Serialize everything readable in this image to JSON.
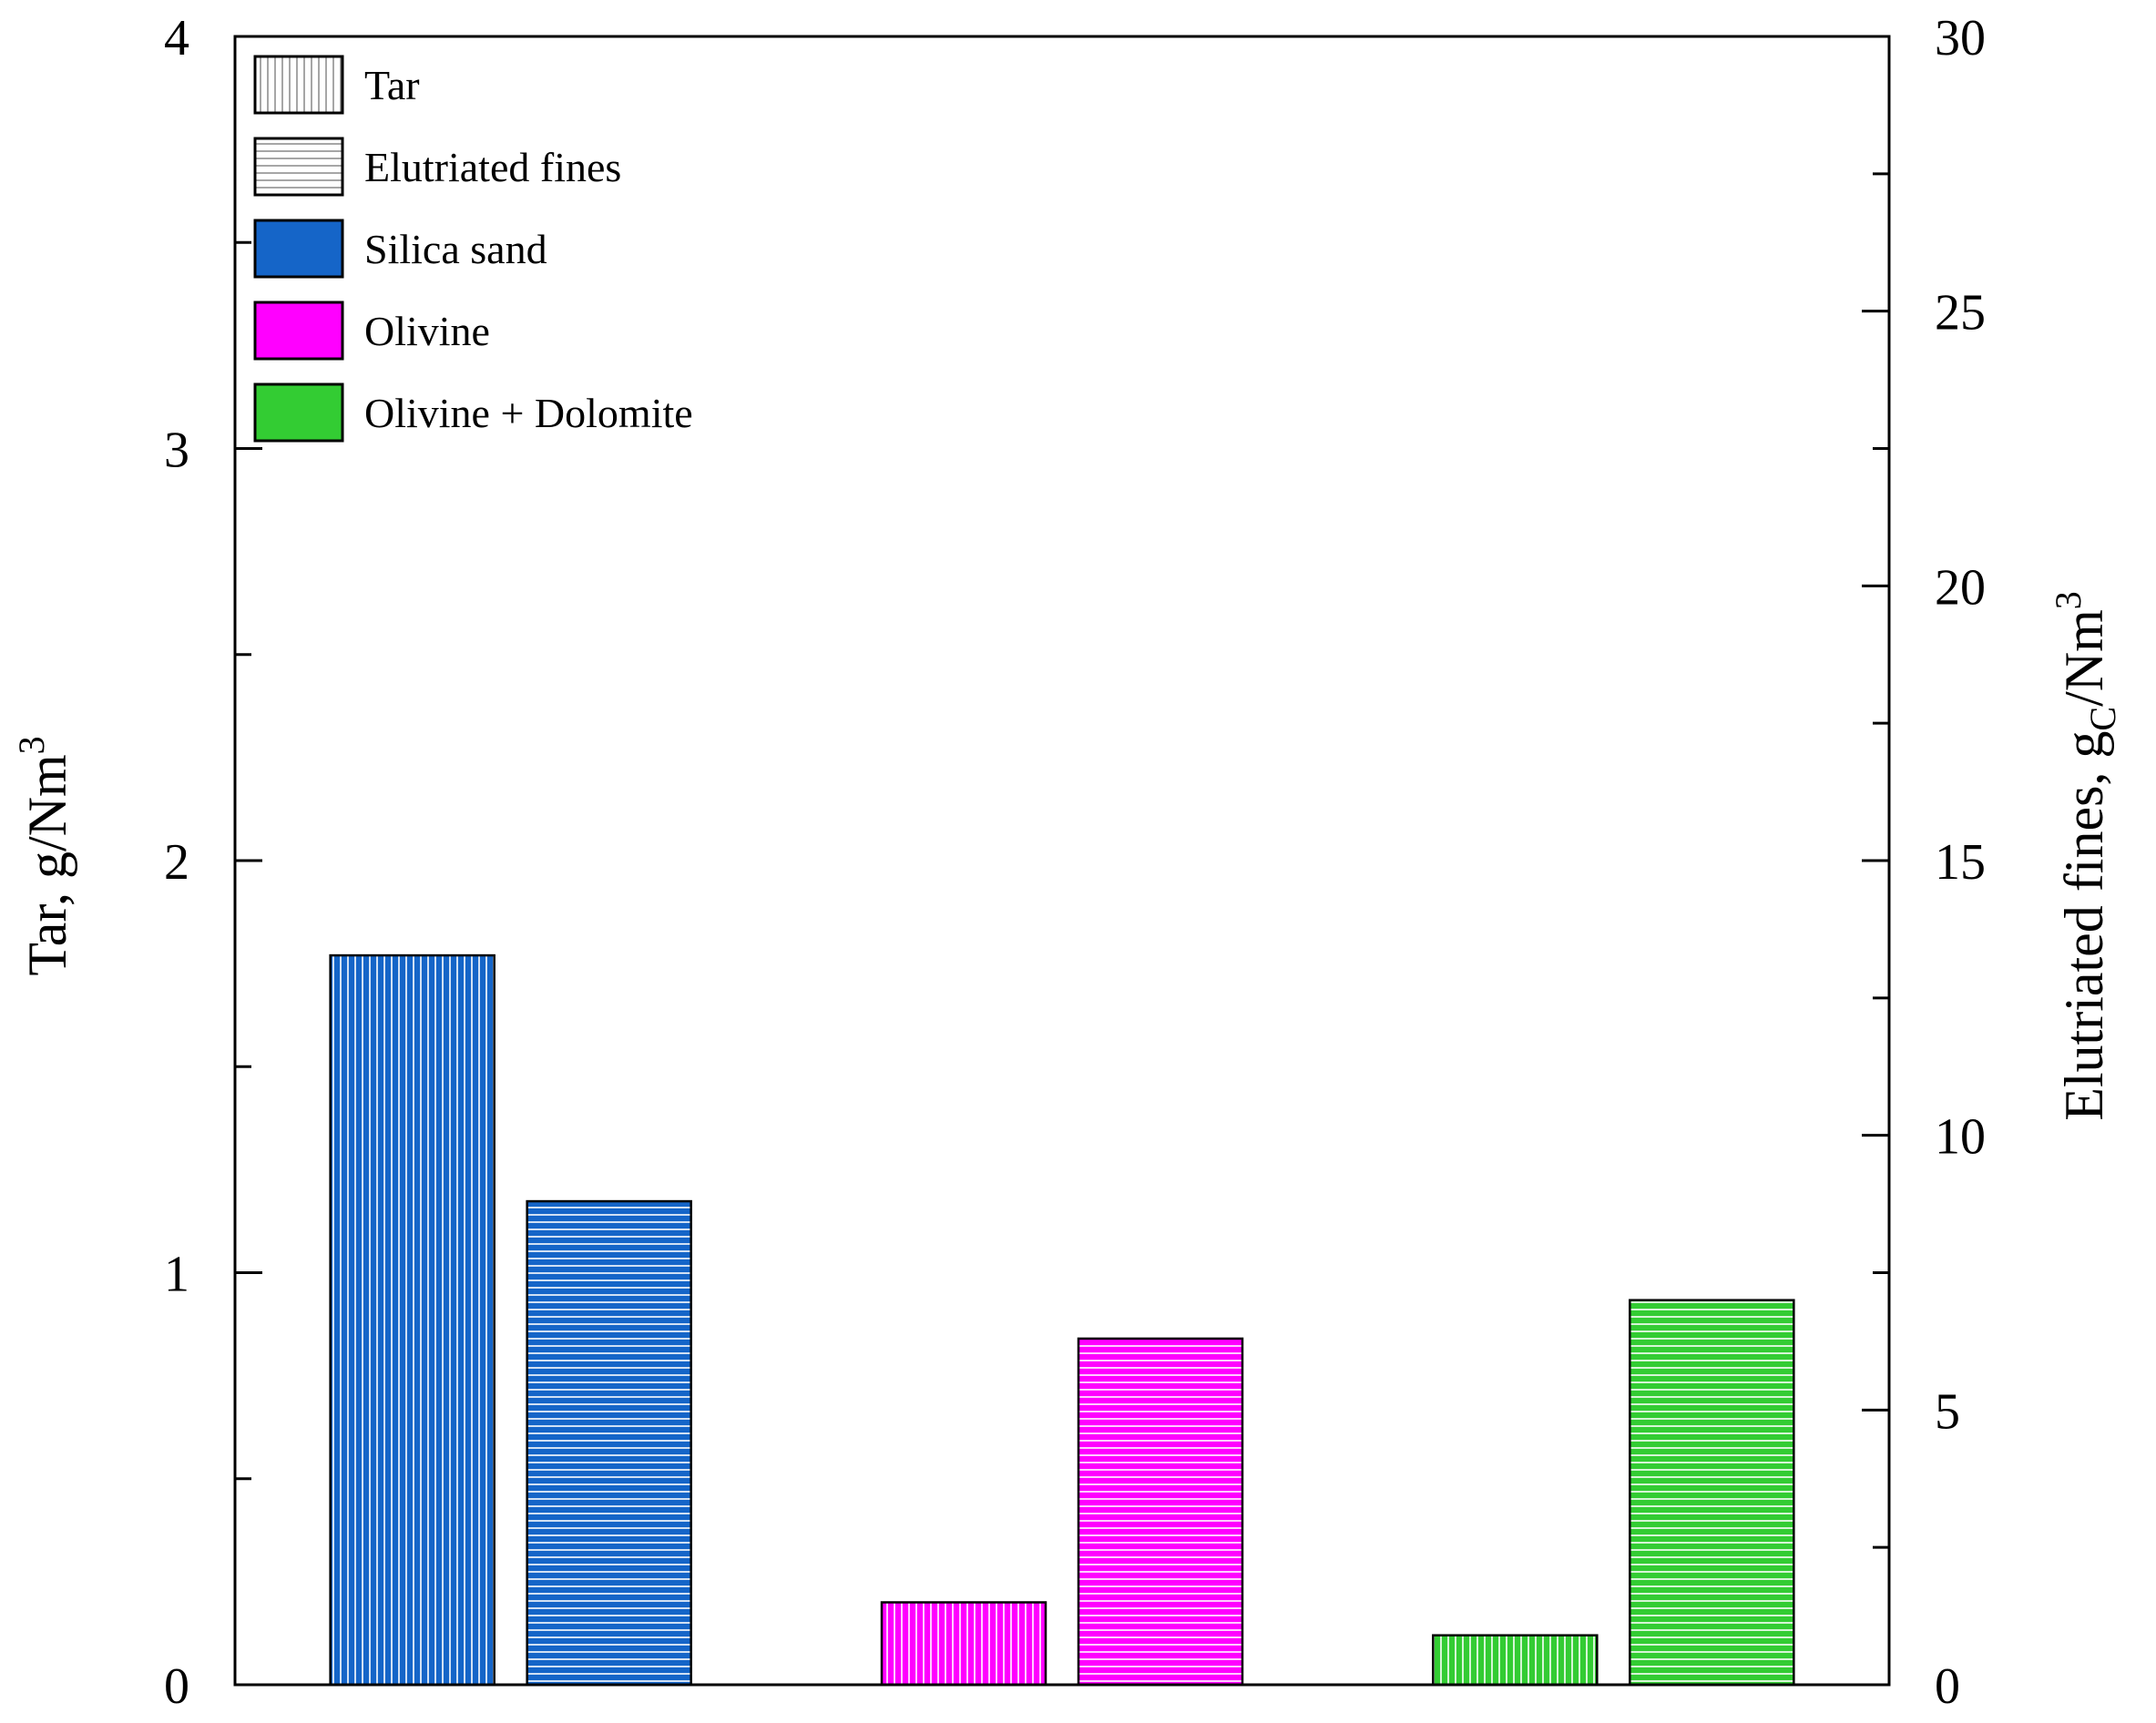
{
  "chart_data": {
    "type": "bar",
    "categories": [
      "Silica sand",
      "Olivine",
      "Olivine + Dolomite"
    ],
    "series": [
      {
        "name": "Tar",
        "axis": "left",
        "pattern": "vertical-lines",
        "values": [
          1.77,
          0.2,
          0.12
        ]
      },
      {
        "name": "Elutriated fines",
        "axis": "right",
        "pattern": "horizontal-lines",
        "values": [
          8.8,
          6.3,
          7.0
        ]
      }
    ],
    "category_colors": {
      "Silica sand": "#1565c8",
      "Olivine": "#ff00ff",
      "Olivine + Dolomite": "#33cc33"
    },
    "legend": {
      "position": "top-left",
      "entries": [
        {
          "label": "Tar",
          "swatch": "vertical-lines"
        },
        {
          "label": "Elutriated fines",
          "swatch": "horizontal-lines"
        },
        {
          "label": "Silica sand",
          "color": "#1565c8"
        },
        {
          "label": "Olivine",
          "color": "#ff00ff"
        },
        {
          "label": "Olivine + Dolomite",
          "color": "#33cc33"
        }
      ]
    },
    "y_left": {
      "label": "Tar, g/Nm",
      "label_superscript": "3",
      "ylim": [
        0,
        4
      ],
      "ticks": [
        0,
        1,
        2,
        3,
        4
      ],
      "minor_step": 0.5
    },
    "y_right": {
      "label_prefix": "Elutriated fines, g",
      "label_subscript": "C",
      "label_suffix": "/Nm",
      "label_superscript": "3",
      "ylim": [
        0,
        30
      ],
      "ticks": [
        0,
        5,
        10,
        15,
        20,
        25,
        30
      ],
      "minor_step": 2.5
    },
    "xlabel": "",
    "grid": false
  }
}
